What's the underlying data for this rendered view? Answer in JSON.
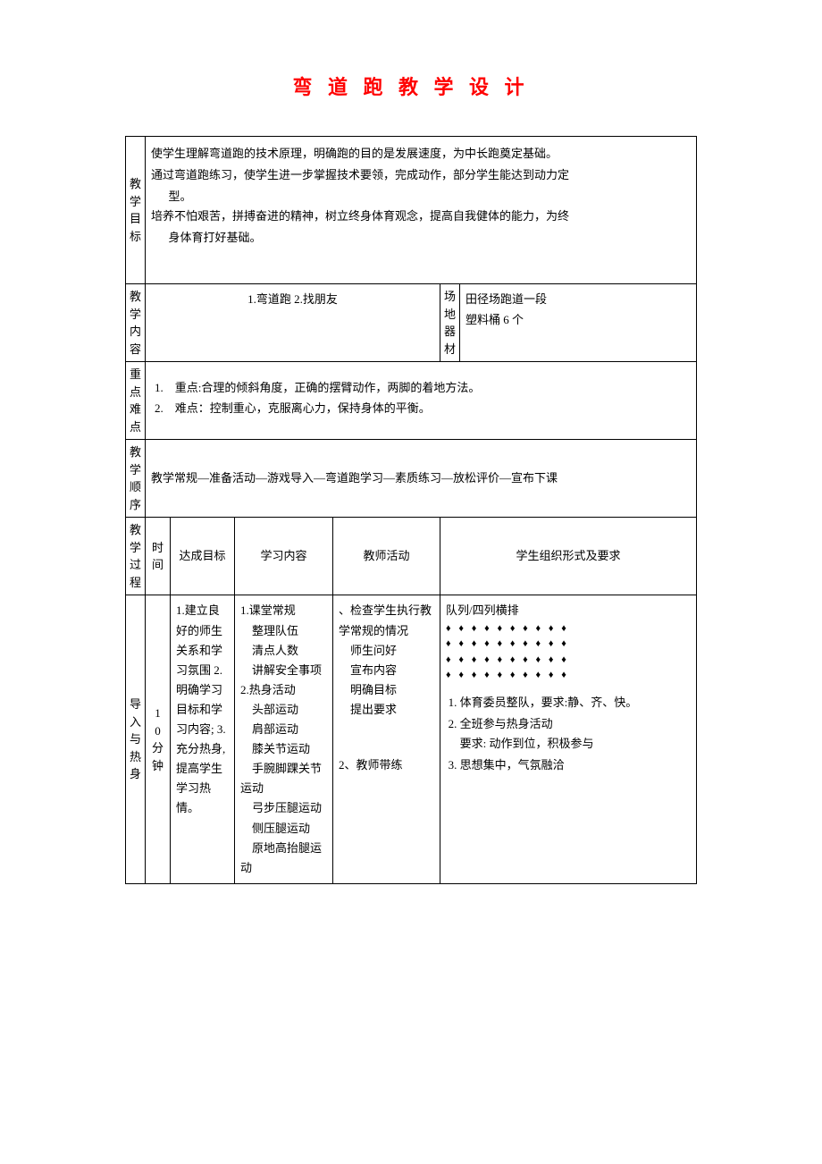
{
  "title": "弯 道 跑 教 学 设 计",
  "labels": {
    "goals": "教学目标",
    "content": "教学内容",
    "venue": "场地器材",
    "points": "重点难点",
    "sequence": "教学顺序",
    "process": "教学过程",
    "time": "时间",
    "achieve": "达成目标",
    "study": "学习内容",
    "teacher": "教师活动",
    "student": "学生组织形式及要求",
    "intro": "导入与热身"
  },
  "goals": {
    "g1": "使学生理解弯道跑的技术原理，明确跑的目的是发展速度，为中长跑奠定基础。",
    "g2a": "通过弯道跑练习，使学生进一步掌握技术要领，完成动作，部分学生能达到动力定",
    "g2b": "型。",
    "g3a": "培养不怕艰苦，拼搏奋进的精神，树立终身体育观念，提高自我健体的能力，为终",
    "g3b": "身体育打好基础。"
  },
  "content_text": "1.弯道跑 2.找朋友",
  "venue": {
    "v1": "田径场跑道一段",
    "v2": "塑料桶 6 个"
  },
  "points": {
    "p1": "1.　重点:合理的倾斜角度，正确的摆臂动作，两脚的着地方法。",
    "p2": "2.　难点：控制重心，克服离心力，保持身体的平衡。"
  },
  "sequence_text": "教学常规—准备活动—游戏导入—弯道跑学习—素质练习—放松评价—宣布下课",
  "intro": {
    "time": "10分钟",
    "achieve": {
      "a1": "1.建立良好的师生关系和学习氛围 2.明确学习目标和学习内容; 3.充分热身,提高学生学习热情。"
    },
    "study": {
      "s1": "1.课堂常规",
      "s2": "　整理队伍",
      "s3": "　清点人数",
      "s4": "　讲解安全事项",
      "s5": "2.热身活动",
      "s6": "　头部运动",
      "s7": "　肩部运动",
      "s8": "　膝关节运动",
      "s9": "　手腕脚踝关节运动",
      "s10": "　弓步压腿运动",
      "s11": "　侧压腿运动",
      "s12": "　原地高抬腿运动"
    },
    "teacher": {
      "t1": "、检查学生执行教学常规的情况",
      "t2": "　师生问好",
      "t3": "　宣布内容",
      "t4": "　明确目标",
      "t5": "　提出要求",
      "t6": "2、教师带练"
    },
    "student": {
      "header": "队列/四列横排",
      "row": "♦ ♦ ♦ ♦ ♦ ♦ ♦ ♦ ♦ ♦",
      "li1": "体育委员整队，要求:静、齐、快。",
      "li2": "全班参与热身活动",
      "li2b": "要求: 动作到位，积极参与",
      "li3": "思想集中，气氛融洽"
    }
  },
  "colors": {
    "title": "#ff0000",
    "border": "#000000",
    "text": "#000000",
    "bg": "#ffffff"
  }
}
